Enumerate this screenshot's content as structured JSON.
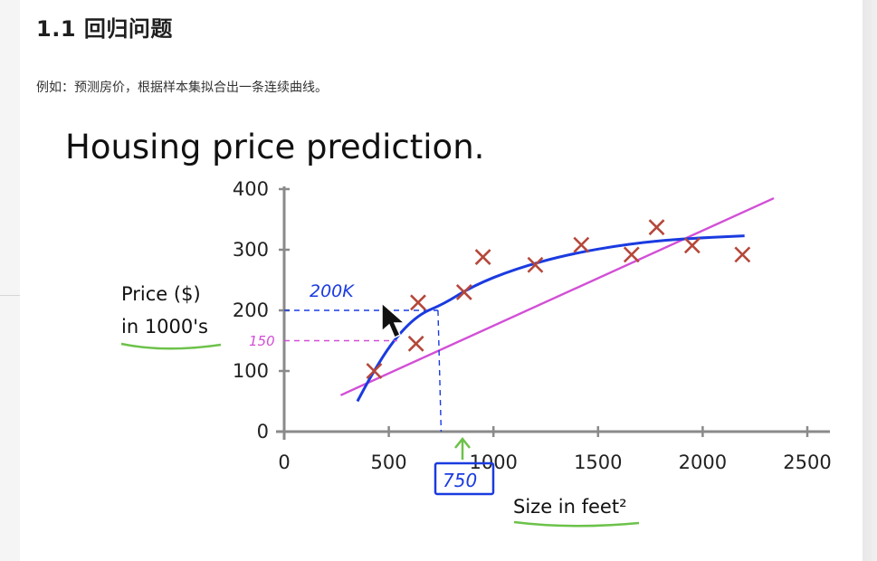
{
  "heading": "1.1 回归问题",
  "caption": "例如：预测房价，根据样本集拟合出一条连续曲线。",
  "chart_data": {
    "type": "scatter",
    "title": "Housing price prediction.",
    "xlabel": "Size in feet²",
    "ylabel_line1": "Price ($)",
    "ylabel_line2": "in 1000's",
    "xlim": [
      0,
      2500
    ],
    "ylim": [
      0,
      400
    ],
    "xticks": [
      0,
      500,
      1000,
      1500,
      2000,
      2500
    ],
    "yticks": [
      0,
      100,
      200,
      300,
      400
    ],
    "points": [
      {
        "x": 430,
        "y": 100
      },
      {
        "x": 630,
        "y": 145
      },
      {
        "x": 640,
        "y": 213
      },
      {
        "x": 860,
        "y": 230
      },
      {
        "x": 950,
        "y": 288
      },
      {
        "x": 1200,
        "y": 275
      },
      {
        "x": 1420,
        "y": 308
      },
      {
        "x": 1660,
        "y": 292
      },
      {
        "x": 1780,
        "y": 337
      },
      {
        "x": 1950,
        "y": 307
      },
      {
        "x": 2190,
        "y": 292
      }
    ],
    "annotations": {
      "query_x_label": "750",
      "pred_curve_label": "200K",
      "pred_line_label": "150"
    },
    "colors": {
      "points": "#b5473a",
      "curve": "#1a3be0",
      "line": "#d24fd6",
      "axis": "#8a8a8a",
      "green": "#6cc24a"
    }
  }
}
